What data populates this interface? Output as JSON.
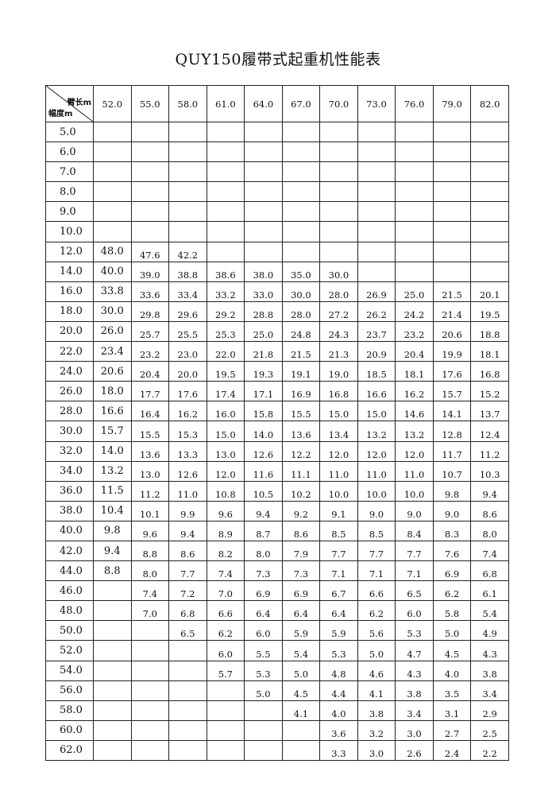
{
  "title": "QUY150履带式起重机性能表",
  "corner": {
    "boom_length_label": "臂长m",
    "radius_label": "幅度m"
  },
  "boom_lengths": [
    "52.0",
    "55.0",
    "58.0",
    "61.0",
    "64.0",
    "67.0",
    "70.0",
    "73.0",
    "76.0",
    "79.0",
    "82.0"
  ],
  "rows": [
    {
      "radius": "5.0",
      "values": [
        "",
        "",
        "",
        "",
        "",
        "",
        "",
        "",
        "",
        "",
        ""
      ]
    },
    {
      "radius": "6.0",
      "values": [
        "",
        "",
        "",
        "",
        "",
        "",
        "",
        "",
        "",
        "",
        ""
      ]
    },
    {
      "radius": "7.0",
      "values": [
        "",
        "",
        "",
        "",
        "",
        "",
        "",
        "",
        "",
        "",
        ""
      ]
    },
    {
      "radius": "8.0",
      "values": [
        "",
        "",
        "",
        "",
        "",
        "",
        "",
        "",
        "",
        "",
        ""
      ]
    },
    {
      "radius": "9.0",
      "values": [
        "",
        "",
        "",
        "",
        "",
        "",
        "",
        "",
        "",
        "",
        ""
      ]
    },
    {
      "radius": "10.0",
      "values": [
        "",
        "",
        "",
        "",
        "",
        "",
        "",
        "",
        "",
        "",
        ""
      ]
    },
    {
      "radius": "12.0",
      "values": [
        "48.0",
        "47.6",
        "42.2",
        "",
        "",
        "",
        "",
        "",
        "",
        "",
        ""
      ]
    },
    {
      "radius": "14.0",
      "values": [
        "40.0",
        "39.0",
        "38.8",
        "38.6",
        "38.0",
        "35.0",
        "30.0",
        "",
        "",
        "",
        ""
      ]
    },
    {
      "radius": "16.0",
      "values": [
        "33.8",
        "33.6",
        "33.4",
        "33.2",
        "33.0",
        "30.0",
        "28.0",
        "26.9",
        "25.0",
        "21.5",
        "20.1"
      ]
    },
    {
      "radius": "18.0",
      "values": [
        "30.0",
        "29.8",
        "29.6",
        "29.2",
        "28.8",
        "28.0",
        "27.2",
        "26.2",
        "24.2",
        "21.4",
        "19.5"
      ]
    },
    {
      "radius": "20.0",
      "values": [
        "26.0",
        "25.7",
        "25.5",
        "25.3",
        "25.0",
        "24.8",
        "24.3",
        "23.7",
        "23.2",
        "20.6",
        "18.8"
      ]
    },
    {
      "radius": "22.0",
      "values": [
        "23.4",
        "23.2",
        "23.0",
        "22.0",
        "21.8",
        "21.5",
        "21.3",
        "20.9",
        "20.4",
        "19.9",
        "18.1"
      ]
    },
    {
      "radius": "24.0",
      "values": [
        "20.6",
        "20.4",
        "20.0",
        "19.5",
        "19.3",
        "19.1",
        "19.0",
        "18.5",
        "18.1",
        "17.6",
        "16.8"
      ]
    },
    {
      "radius": "26.0",
      "values": [
        "18.0",
        "17.7",
        "17.6",
        "17.4",
        "17.1",
        "16.9",
        "16.8",
        "16.6",
        "16.2",
        "15.7",
        "15.2"
      ]
    },
    {
      "radius": "28.0",
      "values": [
        "16.6",
        "16.4",
        "16.2",
        "16.0",
        "15.8",
        "15.5",
        "15.0",
        "15.0",
        "14.6",
        "14.1",
        "13.7"
      ]
    },
    {
      "radius": "30.0",
      "values": [
        "15.7",
        "15.5",
        "15.3",
        "15.0",
        "14.0",
        "13.6",
        "13.4",
        "13.2",
        "13.2",
        "12.8",
        "12.4"
      ]
    },
    {
      "radius": "32.0",
      "values": [
        "14.0",
        "13.6",
        "13.3",
        "13.0",
        "12.6",
        "12.2",
        "12.0",
        "12.0",
        "12.0",
        "11.7",
        "11.2"
      ]
    },
    {
      "radius": "34.0",
      "values": [
        "13.2",
        "13.0",
        "12.6",
        "12.0",
        "11.6",
        "11.1",
        "11.0",
        "11.0",
        "11.0",
        "10.7",
        "10.3"
      ]
    },
    {
      "radius": "36.0",
      "values": [
        "11.5",
        "11.2",
        "11.0",
        "10.8",
        "10.5",
        "10.2",
        "10.0",
        "10.0",
        "10.0",
        "9.8",
        "9.4"
      ]
    },
    {
      "radius": "38.0",
      "values": [
        "10.4",
        "10.1",
        "9.9",
        "9.6",
        "9.4",
        "9.2",
        "9.1",
        "9.0",
        "9.0",
        "9.0",
        "8.6"
      ]
    },
    {
      "radius": "40.0",
      "values": [
        "9.8",
        "9.6",
        "9.4",
        "8.9",
        "8.7",
        "8.6",
        "8.5",
        "8.5",
        "8.4",
        "8.3",
        "8.0"
      ]
    },
    {
      "radius": "42.0",
      "values": [
        "9.4",
        "8.8",
        "8.6",
        "8.2",
        "8.0",
        "7.9",
        "7.7",
        "7.7",
        "7.7",
        "7.6",
        "7.4"
      ]
    },
    {
      "radius": "44.0",
      "values": [
        "8.8",
        "8.0",
        "7.7",
        "7.4",
        "7.3",
        "7.3",
        "7.1",
        "7.1",
        "7.1",
        "6.9",
        "6.8"
      ]
    },
    {
      "radius": "46.0",
      "values": [
        "",
        "7.4",
        "7.2",
        "7.0",
        "6.9",
        "6.9",
        "6.7",
        "6.6",
        "6.5",
        "6.2",
        "6.1"
      ]
    },
    {
      "radius": "48.0",
      "values": [
        "",
        "7.0",
        "6.8",
        "6.6",
        "6.4",
        "6.4",
        "6.4",
        "6.2",
        "6.0",
        "5.8",
        "5.4"
      ]
    },
    {
      "radius": "50.0",
      "values": [
        "",
        "",
        "6.5",
        "6.2",
        "6.0",
        "5.9",
        "5.9",
        "5.6",
        "5.3",
        "5.0",
        "4.9"
      ]
    },
    {
      "radius": "52.0",
      "values": [
        "",
        "",
        "",
        "6.0",
        "5.5",
        "5.4",
        "5.3",
        "5.0",
        "4.7",
        "4.5",
        "4.3"
      ]
    },
    {
      "radius": "54.0",
      "values": [
        "",
        "",
        "",
        "5.7",
        "5.3",
        "5.0",
        "4.8",
        "4.6",
        "4.3",
        "4.0",
        "3.8"
      ]
    },
    {
      "radius": "56.0",
      "values": [
        "",
        "",
        "",
        "",
        "5.0",
        "4.5",
        "4.4",
        "4.1",
        "3.8",
        "3.5",
        "3.4"
      ]
    },
    {
      "radius": "58.0",
      "values": [
        "",
        "",
        "",
        "",
        "",
        "4.1",
        "4.0",
        "3.8",
        "3.4",
        "3.1",
        "2.9"
      ]
    },
    {
      "radius": "60.0",
      "values": [
        "",
        "",
        "",
        "",
        "",
        "",
        "3.6",
        "3.2",
        "3.0",
        "2.7",
        "2.5"
      ]
    },
    {
      "radius": "62.0",
      "values": [
        "",
        "",
        "",
        "",
        "",
        "",
        "3.3",
        "3.0",
        "2.6",
        "2.4",
        "2.2"
      ]
    }
  ]
}
